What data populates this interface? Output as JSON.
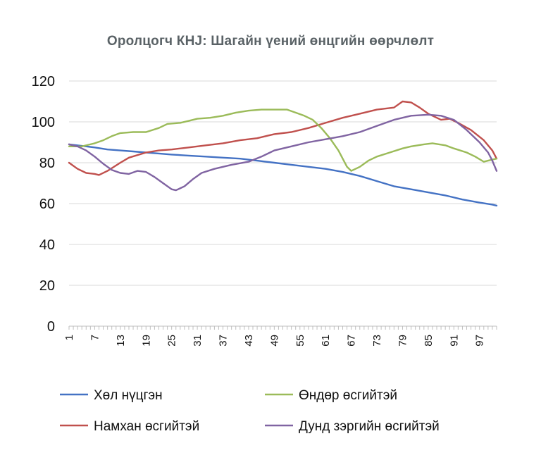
{
  "chart_data": {
    "type": "line",
    "title": "Оролцогч КНЈ: Шагайн үений өнцгийн өөрчлөлт",
    "xlabel": "",
    "ylabel": "",
    "x_range": [
      1,
      101
    ],
    "ylim": [
      0,
      120
    ],
    "y_ticks": [
      0,
      20,
      40,
      60,
      80,
      100,
      120
    ],
    "x_tick_labels": [
      "1",
      "7",
      "13",
      "19",
      "25",
      "31",
      "37",
      "43",
      "49",
      "55",
      "61",
      "67",
      "73",
      "79",
      "85",
      "91",
      "97"
    ],
    "grid": "horizontal",
    "legend_position": "bottom",
    "series": [
      {
        "name": "Хөл нүцгэн",
        "color": "#4472c4",
        "points": [
          [
            1,
            89
          ],
          [
            5,
            88
          ],
          [
            7,
            87.5
          ],
          [
            10,
            86.5
          ],
          [
            13,
            86
          ],
          [
            16,
            85.5
          ],
          [
            19,
            85
          ],
          [
            22,
            84.5
          ],
          [
            25,
            84
          ],
          [
            29,
            83.5
          ],
          [
            33,
            83
          ],
          [
            37,
            82.5
          ],
          [
            41,
            82
          ],
          [
            45,
            81
          ],
          [
            49,
            80
          ],
          [
            53,
            79
          ],
          [
            57,
            78
          ],
          [
            61,
            77
          ],
          [
            65,
            75.5
          ],
          [
            69,
            73.5
          ],
          [
            73,
            71
          ],
          [
            77,
            68.5
          ],
          [
            81,
            67
          ],
          [
            85,
            65.5
          ],
          [
            89,
            64
          ],
          [
            93,
            62
          ],
          [
            97,
            60.5
          ],
          [
            100,
            59.5
          ],
          [
            101,
            59
          ]
        ]
      },
      {
        "name": "Намхан өсгийтэй",
        "color": "#c0504d",
        "points": [
          [
            1,
            80
          ],
          [
            3,
            77
          ],
          [
            5,
            75
          ],
          [
            7,
            74.5
          ],
          [
            8,
            74
          ],
          [
            10,
            76
          ],
          [
            13,
            80
          ],
          [
            15,
            82.5
          ],
          [
            19,
            85
          ],
          [
            22,
            86
          ],
          [
            25,
            86.5
          ],
          [
            29,
            87.5
          ],
          [
            33,
            88.5
          ],
          [
            37,
            89.5
          ],
          [
            41,
            91
          ],
          [
            45,
            92
          ],
          [
            49,
            94
          ],
          [
            53,
            95
          ],
          [
            57,
            97
          ],
          [
            61,
            99.5
          ],
          [
            65,
            102
          ],
          [
            69,
            104
          ],
          [
            73,
            106
          ],
          [
            77,
            107
          ],
          [
            79,
            110
          ],
          [
            81,
            109.5
          ],
          [
            83,
            107
          ],
          [
            85,
            104
          ],
          [
            88,
            101
          ],
          [
            90,
            101.5
          ],
          [
            92,
            99.5
          ],
          [
            95,
            96
          ],
          [
            98,
            91
          ],
          [
            100,
            86
          ],
          [
            101,
            82
          ]
        ]
      },
      {
        "name": "Өндөр өсгийтэй",
        "color": "#9bbb59",
        "points": [
          [
            1,
            88
          ],
          [
            4,
            88
          ],
          [
            7,
            89.5
          ],
          [
            9,
            91
          ],
          [
            11,
            93
          ],
          [
            13,
            94.5
          ],
          [
            16,
            95
          ],
          [
            19,
            95
          ],
          [
            22,
            97
          ],
          [
            24,
            99
          ],
          [
            27,
            99.5
          ],
          [
            29,
            100.5
          ],
          [
            31,
            101.5
          ],
          [
            34,
            102
          ],
          [
            37,
            103
          ],
          [
            40,
            104.5
          ],
          [
            43,
            105.5
          ],
          [
            46,
            106
          ],
          [
            49,
            106
          ],
          [
            52,
            106
          ],
          [
            54,
            104.5
          ],
          [
            56,
            103
          ],
          [
            58,
            101
          ],
          [
            60,
            97
          ],
          [
            62,
            92
          ],
          [
            64,
            86
          ],
          [
            66,
            78
          ],
          [
            67,
            76
          ],
          [
            69,
            78
          ],
          [
            71,
            81
          ],
          [
            73,
            83
          ],
          [
            76,
            85
          ],
          [
            79,
            87
          ],
          [
            81,
            88
          ],
          [
            84,
            89
          ],
          [
            86,
            89.5
          ],
          [
            89,
            88.5
          ],
          [
            91,
            87
          ],
          [
            94,
            85
          ],
          [
            96,
            83
          ],
          [
            98,
            80.5
          ],
          [
            100,
            81.5
          ],
          [
            101,
            82
          ]
        ]
      },
      {
        "name": "Дунд зэргийн өсгийтэй",
        "color": "#8064a2",
        "points": [
          [
            1,
            89
          ],
          [
            3,
            88
          ],
          [
            5,
            86
          ],
          [
            7,
            83
          ],
          [
            9,
            79.5
          ],
          [
            11,
            76.5
          ],
          [
            13,
            75
          ],
          [
            15,
            74.5
          ],
          [
            17,
            76
          ],
          [
            19,
            75.5
          ],
          [
            21,
            73
          ],
          [
            23,
            70
          ],
          [
            25,
            67
          ],
          [
            26,
            66.5
          ],
          [
            28,
            68.5
          ],
          [
            30,
            72
          ],
          [
            32,
            75
          ],
          [
            35,
            77
          ],
          [
            39,
            79
          ],
          [
            43,
            80.5
          ],
          [
            46,
            83
          ],
          [
            49,
            86
          ],
          [
            53,
            88
          ],
          [
            57,
            90
          ],
          [
            61,
            91.5
          ],
          [
            65,
            93
          ],
          [
            69,
            95
          ],
          [
            73,
            98
          ],
          [
            77,
            101
          ],
          [
            81,
            103
          ],
          [
            85,
            103.5
          ],
          [
            88,
            103
          ],
          [
            91,
            101
          ],
          [
            94,
            96
          ],
          [
            97,
            90
          ],
          [
            99,
            85
          ],
          [
            100,
            81
          ],
          [
            101,
            76
          ]
        ]
      }
    ]
  }
}
